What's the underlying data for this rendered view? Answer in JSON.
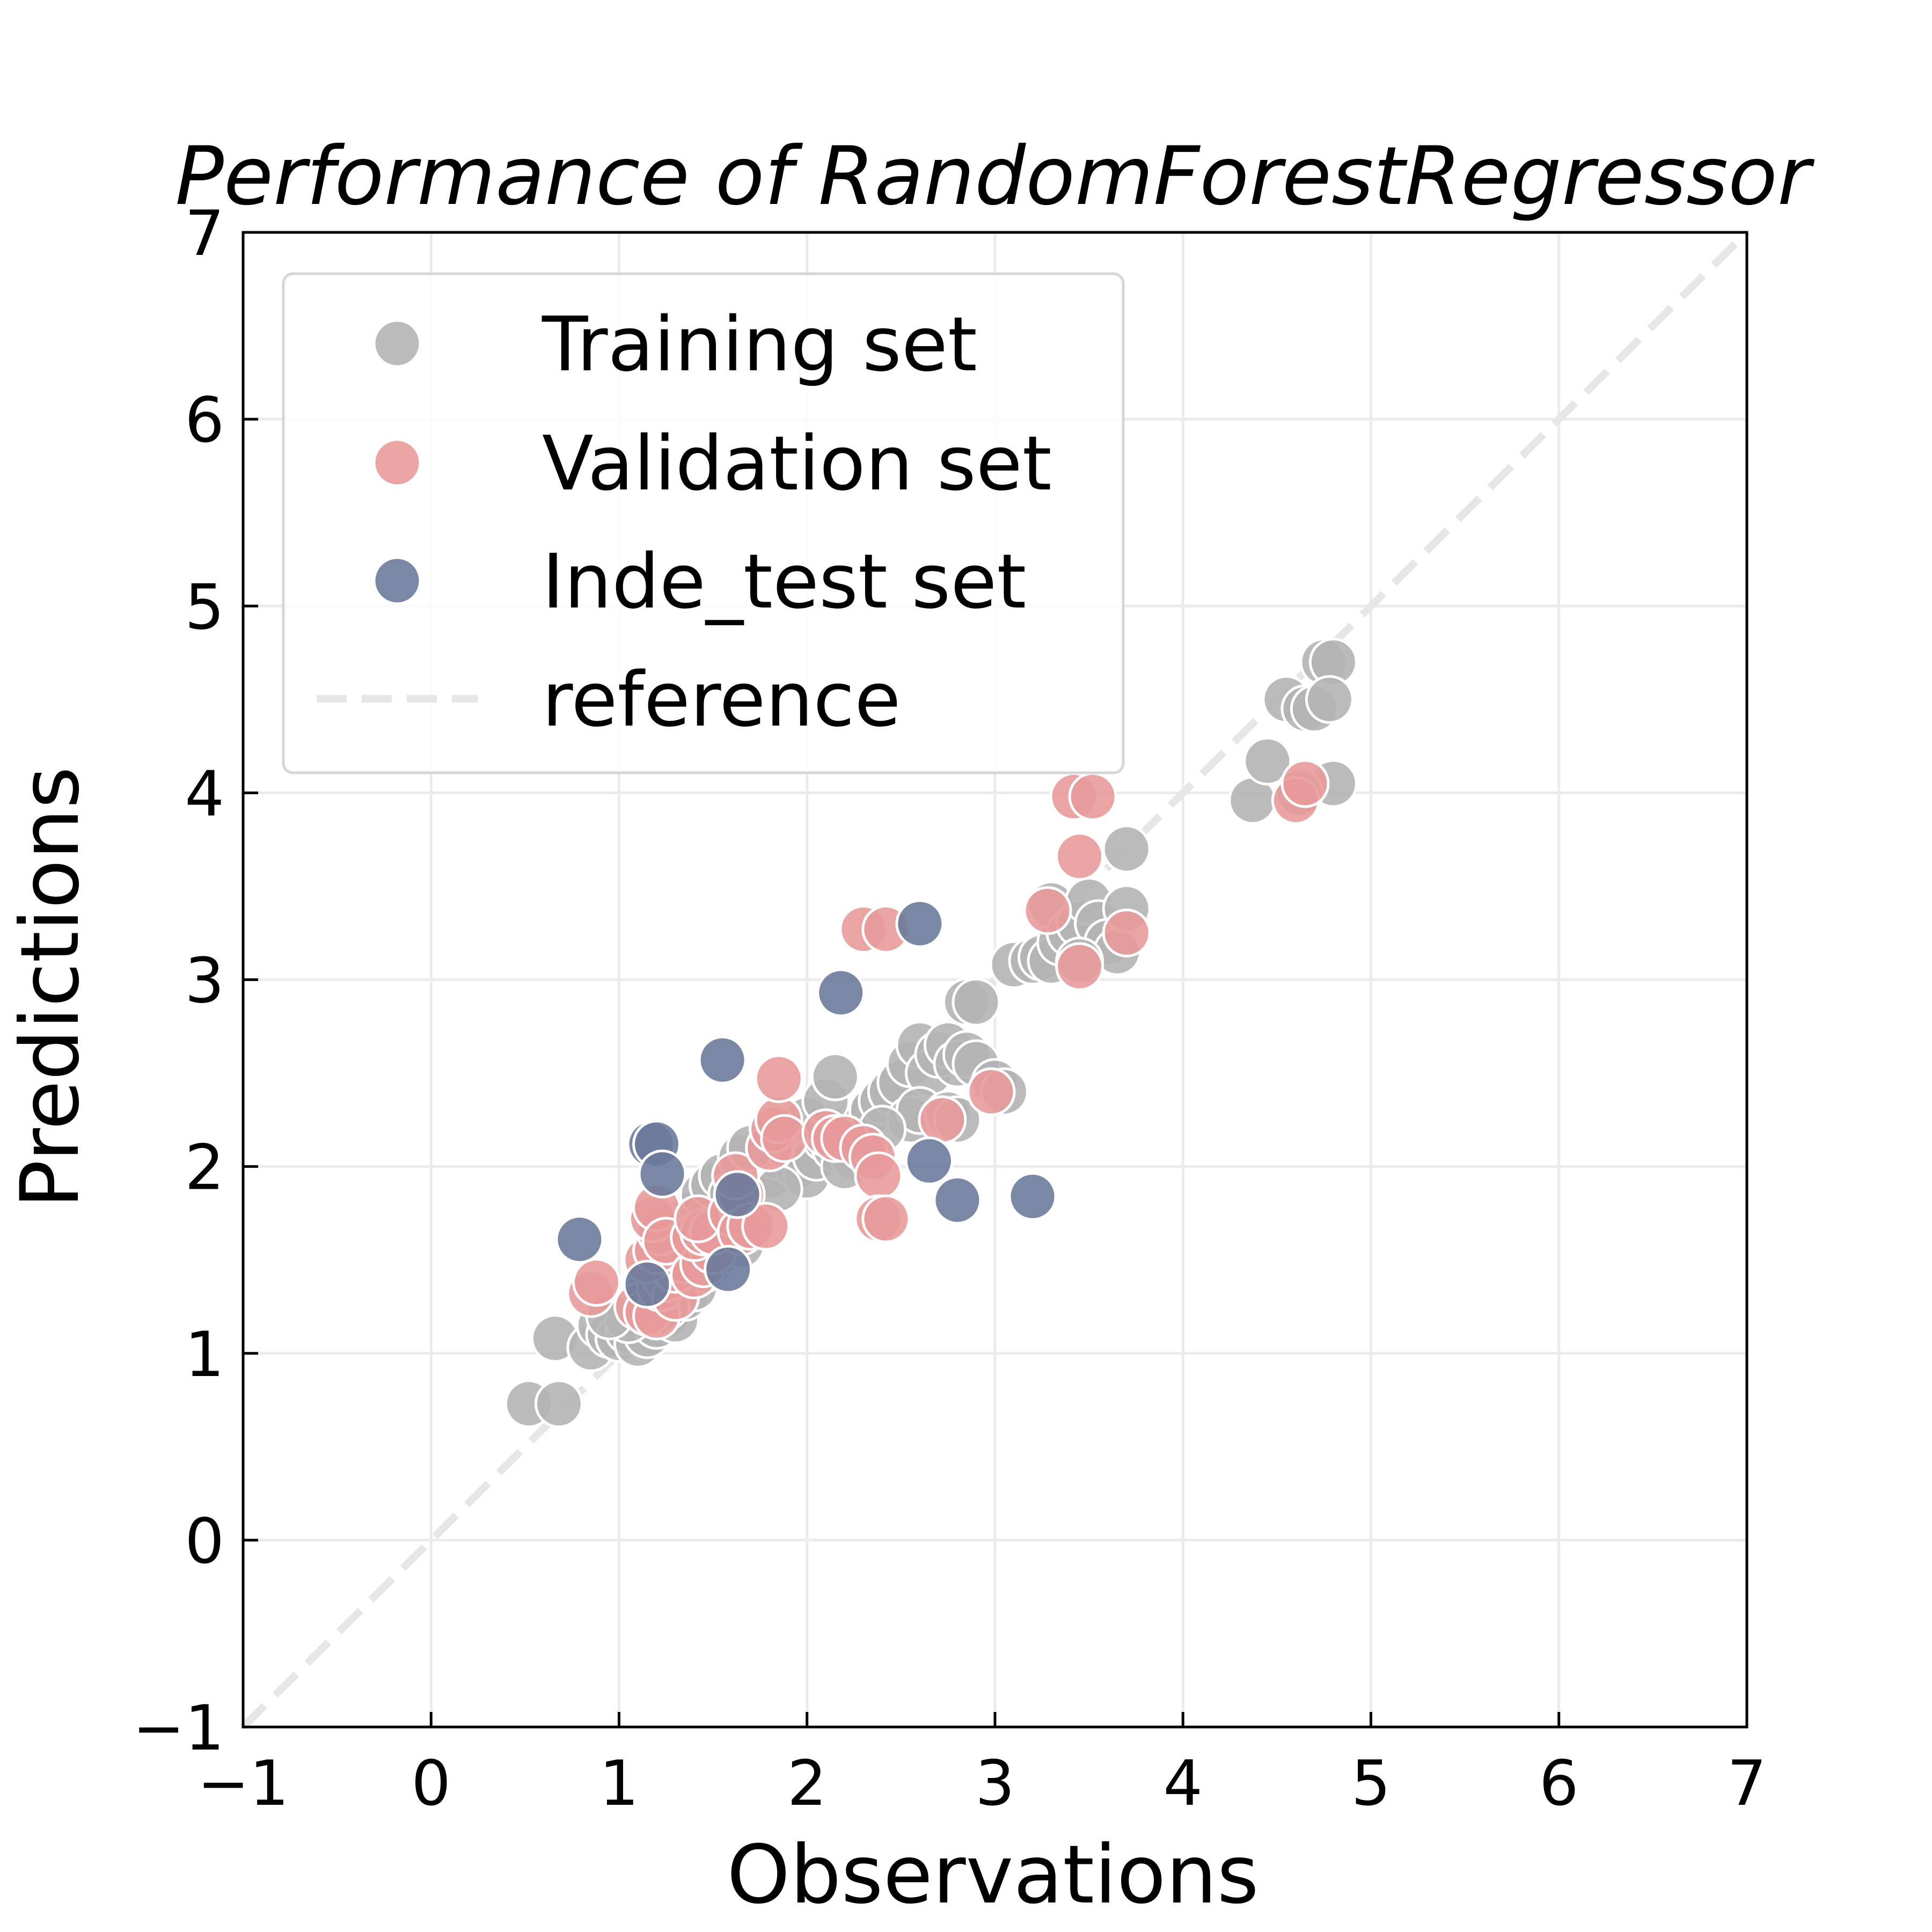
{
  "chart_data": {
    "type": "scatter",
    "title": "Performance of RandomForestRegressor",
    "xlabel": "Observations",
    "ylabel": "Predictions",
    "xlim": [
      -1,
      7
    ],
    "ylim": [
      -1,
      7
    ],
    "xticks": [
      "−1",
      "0",
      "1",
      "2",
      "3",
      "4",
      "5",
      "6",
      "7"
    ],
    "yticks": [
      "−1",
      "0",
      "1",
      "2",
      "3",
      "4",
      "5",
      "6",
      "7"
    ],
    "grid": true,
    "legend_position": "top-left",
    "reference_line": {
      "name": "reference",
      "from": [
        -1,
        -1
      ],
      "to": [
        7,
        7
      ],
      "color": "#e6e6e6",
      "style": "dashed"
    },
    "series": [
      {
        "name": "Training set",
        "color": "#b4b4b4",
        "points": [
          [
            0.52,
            0.73
          ],
          [
            0.68,
            0.73
          ],
          [
            0.66,
            1.08
          ],
          [
            0.85,
            1.03
          ],
          [
            0.9,
            1.15
          ],
          [
            0.95,
            1.1
          ],
          [
            1.0,
            1.08
          ],
          [
            1.05,
            1.12
          ],
          [
            1.1,
            1.05
          ],
          [
            1.15,
            1.1
          ],
          [
            1.2,
            1.15
          ],
          [
            1.25,
            1.2
          ],
          [
            1.3,
            1.18
          ],
          [
            1.35,
            1.3
          ],
          [
            1.4,
            1.35
          ],
          [
            1.45,
            1.45
          ],
          [
            1.5,
            1.5
          ],
          [
            1.55,
            1.55
          ],
          [
            1.6,
            1.6
          ],
          [
            1.65,
            1.58
          ],
          [
            1.35,
            1.65
          ],
          [
            1.4,
            1.75
          ],
          [
            1.45,
            1.85
          ],
          [
            1.5,
            1.9
          ],
          [
            1.55,
            1.95
          ],
          [
            1.6,
            1.85
          ],
          [
            1.7,
            1.9
          ],
          [
            1.75,
            2.0
          ],
          [
            1.8,
            1.95
          ],
          [
            1.85,
            2.05
          ],
          [
            1.9,
            2.1
          ],
          [
            1.95,
            2.0
          ],
          [
            2.0,
            1.95
          ],
          [
            2.05,
            2.05
          ],
          [
            2.1,
            2.15
          ],
          [
            2.15,
            2.1
          ],
          [
            2.2,
            2.2
          ],
          [
            2.25,
            2.15
          ],
          [
            2.3,
            2.25
          ],
          [
            2.35,
            2.3
          ],
          [
            1.65,
            2.05
          ],
          [
            1.7,
            2.1
          ],
          [
            1.85,
            1.88
          ],
          [
            2.0,
            2.25
          ],
          [
            2.1,
            2.35
          ],
          [
            2.15,
            2.48
          ],
          [
            2.4,
            2.35
          ],
          [
            2.45,
            2.4
          ],
          [
            2.5,
            2.45
          ],
          [
            2.55,
            2.55
          ],
          [
            2.6,
            2.65
          ],
          [
            2.65,
            2.5
          ],
          [
            2.7,
            2.6
          ],
          [
            2.75,
            2.65
          ],
          [
            2.8,
            2.55
          ],
          [
            2.85,
            2.6
          ],
          [
            2.9,
            2.55
          ],
          [
            2.55,
            2.25
          ],
          [
            2.6,
            2.3
          ],
          [
            2.75,
            2.28
          ],
          [
            2.8,
            2.25
          ],
          [
            2.85,
            2.88
          ],
          [
            2.9,
            2.88
          ],
          [
            3.0,
            2.45
          ],
          [
            3.05,
            2.4
          ],
          [
            3.1,
            3.08
          ],
          [
            3.2,
            3.1
          ],
          [
            3.25,
            3.12
          ],
          [
            3.3,
            3.1
          ],
          [
            3.35,
            3.2
          ],
          [
            3.3,
            3.4
          ],
          [
            3.4,
            3.25
          ],
          [
            3.45,
            3.3
          ],
          [
            3.5,
            3.42
          ],
          [
            3.55,
            3.3
          ],
          [
            3.6,
            3.2
          ],
          [
            3.65,
            3.15
          ],
          [
            3.7,
            3.38
          ],
          [
            3.7,
            3.7
          ],
          [
            3.45,
            3.1
          ],
          [
            4.37,
            3.96
          ],
          [
            4.45,
            4.17
          ],
          [
            4.55,
            4.5
          ],
          [
            4.65,
            4.45
          ],
          [
            4.7,
            4.45
          ],
          [
            4.75,
            4.7
          ],
          [
            4.8,
            4.7
          ],
          [
            4.78,
            4.5
          ],
          [
            4.8,
            4.05
          ],
          [
            4.62,
            4.0
          ],
          [
            1.15,
            1.32
          ],
          [
            1.25,
            1.25
          ],
          [
            1.3,
            1.45
          ],
          [
            1.2,
            1.22
          ],
          [
            1.05,
            1.18
          ],
          [
            0.95,
            1.2
          ],
          [
            2.25,
            2.05
          ],
          [
            2.3,
            2.1
          ],
          [
            2.2,
            2.0
          ],
          [
            2.4,
            2.2
          ]
        ]
      },
      {
        "name": "Validation set",
        "color": "#e89a9a",
        "points": [
          [
            0.85,
            1.32
          ],
          [
            0.88,
            1.38
          ],
          [
            1.1,
            1.25
          ],
          [
            1.15,
            1.22
          ],
          [
            1.2,
            1.2
          ],
          [
            1.22,
            1.35
          ],
          [
            1.25,
            1.4
          ],
          [
            1.3,
            1.3
          ],
          [
            1.3,
            1.45
          ],
          [
            1.35,
            1.5
          ],
          [
            1.15,
            1.5
          ],
          [
            1.2,
            1.55
          ],
          [
            1.22,
            1.65
          ],
          [
            1.18,
            1.72
          ],
          [
            1.2,
            1.78
          ],
          [
            1.25,
            1.6
          ],
          [
            1.4,
            1.42
          ],
          [
            1.45,
            1.48
          ],
          [
            1.5,
            1.55
          ],
          [
            1.4,
            1.62
          ],
          [
            1.45,
            1.65
          ],
          [
            1.5,
            1.65
          ],
          [
            1.42,
            1.72
          ],
          [
            1.6,
            1.75
          ],
          [
            1.65,
            1.85
          ],
          [
            1.62,
            1.95
          ],
          [
            1.65,
            1.65
          ],
          [
            1.7,
            1.68
          ],
          [
            1.78,
            1.68
          ],
          [
            1.8,
            2.1
          ],
          [
            1.82,
            2.2
          ],
          [
            1.85,
            2.25
          ],
          [
            1.85,
            2.47
          ],
          [
            1.88,
            2.15
          ],
          [
            2.1,
            2.18
          ],
          [
            2.15,
            2.15
          ],
          [
            2.2,
            2.15
          ],
          [
            2.3,
            2.1
          ],
          [
            2.35,
            2.05
          ],
          [
            2.38,
            1.95
          ],
          [
            2.38,
            1.72
          ],
          [
            2.42,
            1.72
          ],
          [
            2.3,
            3.27
          ],
          [
            2.42,
            3.27
          ],
          [
            2.72,
            2.25
          ],
          [
            2.98,
            2.4
          ],
          [
            3.28,
            3.37
          ],
          [
            3.45,
            3.66
          ],
          [
            3.45,
            3.07
          ],
          [
            3.42,
            3.98
          ],
          [
            3.52,
            3.98
          ],
          [
            3.7,
            3.25
          ],
          [
            4.6,
            3.96
          ],
          [
            4.65,
            4.05
          ]
        ]
      },
      {
        "name": "Inde_test set",
        "color": "#6b7a9b",
        "points": [
          [
            0.79,
            1.61
          ],
          [
            1.15,
            1.37
          ],
          [
            1.17,
            2.12
          ],
          [
            1.2,
            2.12
          ],
          [
            1.23,
            1.96
          ],
          [
            1.55,
            2.57
          ],
          [
            1.58,
            1.45
          ],
          [
            1.63,
            1.85
          ],
          [
            2.18,
            2.93
          ],
          [
            2.6,
            3.3
          ],
          [
            2.65,
            2.03
          ],
          [
            2.8,
            1.82
          ],
          [
            3.2,
            1.84
          ]
        ]
      }
    ]
  }
}
